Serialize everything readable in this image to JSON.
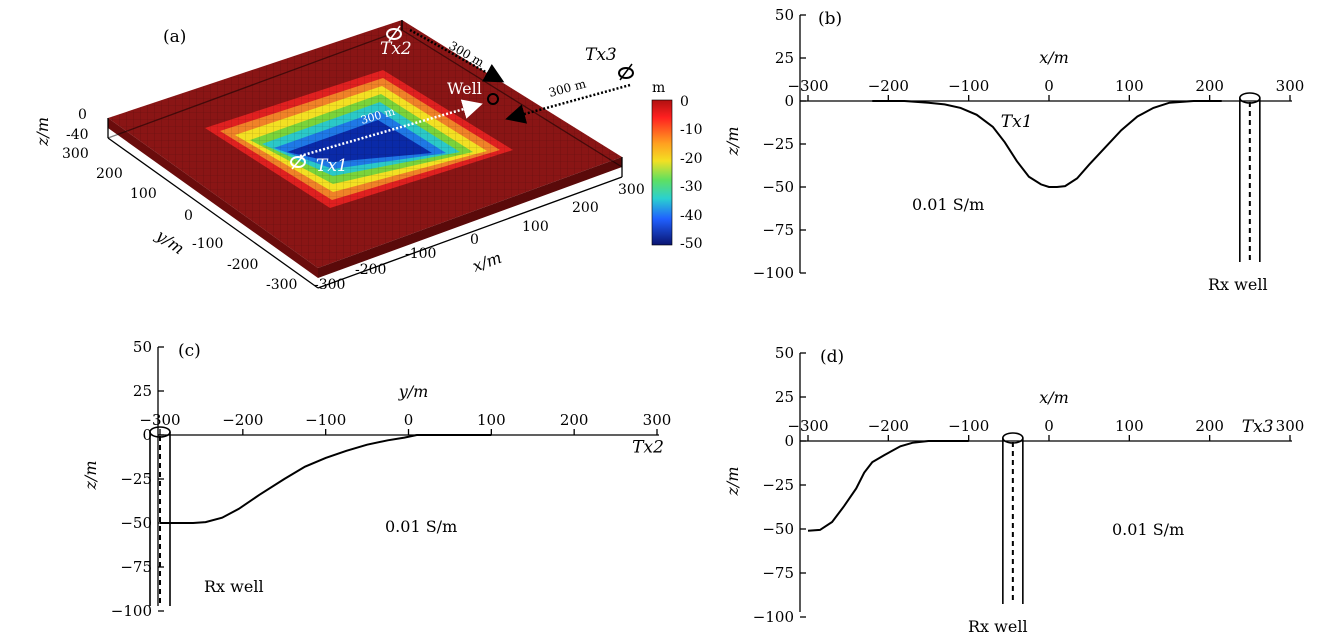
{
  "chart_data": [
    {
      "id": "a",
      "type": "surface3d",
      "panel_label": "(a)",
      "xlabel": "x/m",
      "ylabel": "y/m",
      "zlabel": "z/m",
      "x_ticks": [
        "-300",
        "-200",
        "-100",
        "0",
        "100",
        "200",
        "300"
      ],
      "y_ticks": [
        "-300",
        "-200",
        "-100",
        "0",
        "100",
        "200",
        "300"
      ],
      "z_ticks": [
        "0",
        "-40"
      ],
      "colorbar": {
        "unit": "m",
        "ticks": [
          "0",
          "-10",
          "-20",
          "-30",
          "-40",
          "-50"
        ],
        "range": [
          -50,
          0
        ]
      },
      "surface": "square basin, flat at 0 m outside |x|,|y|<200 m, stepping down to about -50 m at the centre",
      "annotations": {
        "tx1": "Tx1",
        "tx2": "Tx2",
        "tx3": "Tx3",
        "well": "Well",
        "dist_tx2": "300 m",
        "dist_tx3": "300 m",
        "dist_tx1": "300 m"
      },
      "colors": {
        "deep": "#0a2aa8",
        "mid": "#2bc8c8",
        "green": "#7ad33a",
        "yellow": "#f3e023",
        "orange": "#f08228",
        "red": "#e02020",
        "plate": "#8a1515"
      }
    },
    {
      "id": "b",
      "type": "line",
      "panel_label": "(b)",
      "xlabel": "x/m",
      "ylabel": "z/m",
      "xlim": [
        -300,
        300
      ],
      "ylim": [
        -100,
        50
      ],
      "x_ticks": [
        -300,
        -200,
        -100,
        0,
        100,
        200,
        300
      ],
      "y_ticks": [
        50,
        25,
        0,
        -25,
        -50,
        -75,
        -100
      ],
      "x_tick_labels": [
        "-300",
        "-200",
        "-100",
        "0",
        "100",
        "200",
        "300"
      ],
      "y_tick_labels": [
        "50",
        "25",
        "0",
        "-25",
        "-50",
        "-75",
        "-100"
      ],
      "series": [
        {
          "name": "interface",
          "x": [
            -220,
            -180,
            -150,
            -130,
            -110,
            -90,
            -70,
            -55,
            -40,
            -25,
            -10,
            0,
            10,
            20,
            35,
            50,
            70,
            90,
            110,
            130,
            150,
            180,
            215
          ],
          "y": [
            0,
            0,
            -1,
            -2,
            -4,
            -8,
            -15,
            -24,
            -35,
            -44,
            -48.5,
            -50,
            -50,
            -49.5,
            -45,
            -37,
            -27,
            -17,
            -9,
            -4,
            -1,
            0,
            0
          ]
        }
      ],
      "conductivity_label": "0.01 S/m",
      "tx_label": "Tx1",
      "tx_pos": [
        -60,
        -15
      ],
      "well": {
        "x": 250,
        "label": "Rx well"
      }
    },
    {
      "id": "c",
      "type": "line",
      "panel_label": "(c)",
      "xlabel": "y/m",
      "ylabel": "z/m",
      "xlim": [
        -300,
        300
      ],
      "ylim": [
        -100,
        50
      ],
      "x_ticks": [
        -300,
        -200,
        -100,
        0,
        100,
        200,
        300
      ],
      "y_ticks": [
        50,
        25,
        0,
        -25,
        -50,
        -75,
        -100
      ],
      "x_tick_labels": [
        "-300",
        "-200",
        "-100",
        "0",
        "100",
        "200",
        "300"
      ],
      "y_tick_labels": [
        "50",
        "25",
        "0",
        "-25",
        "-50",
        "-75",
        "-100"
      ],
      "series": [
        {
          "name": "interface",
          "x": [
            -300,
            -280,
            -260,
            -245,
            -225,
            -205,
            -180,
            -150,
            -125,
            -100,
            -75,
            -50,
            -25,
            -5,
            10,
            40,
            100
          ],
          "y": [
            -50,
            -50,
            -50,
            -49.5,
            -47,
            -42,
            -34,
            -25,
            -18,
            -13,
            -9,
            -5.5,
            -3,
            -1.5,
            0,
            0,
            0
          ]
        }
      ],
      "conductivity_label": "0.01 S/m",
      "tx_label": "Tx2",
      "tx_pos": [
        270,
        -10
      ],
      "well": {
        "x": -300,
        "label": "Rx well"
      }
    },
    {
      "id": "d",
      "type": "line",
      "panel_label": "(d)",
      "xlabel": "x/m",
      "ylabel": "z/m",
      "xlim": [
        -300,
        300
      ],
      "ylim": [
        -100,
        50
      ],
      "x_ticks": [
        -300,
        -200,
        -100,
        0,
        100,
        200,
        300
      ],
      "y_ticks": [
        50,
        25,
        0,
        -25,
        -50,
        -75,
        -100
      ],
      "x_tick_labels": [
        "-300",
        "-200",
        "-100",
        "0",
        "100",
        "200",
        "300"
      ],
      "y_tick_labels": [
        "50",
        "25",
        "0",
        "-25",
        "-50",
        "-75",
        "-100"
      ],
      "series": [
        {
          "name": "interface",
          "x": [
            -300,
            -285,
            -270,
            -255,
            -240,
            -230,
            -220,
            -205,
            -185,
            -170,
            -150,
            -100
          ],
          "y": [
            -51,
            -50.5,
            -46,
            -37,
            -27,
            -18,
            -12,
            -8,
            -3,
            -1,
            0,
            0
          ]
        }
      ],
      "conductivity_label": "0.01 S/m",
      "tx_label": "Tx3",
      "tx_pos": [
        240,
        5
      ],
      "well": {
        "x": -45,
        "label": "Rx well"
      }
    }
  ]
}
